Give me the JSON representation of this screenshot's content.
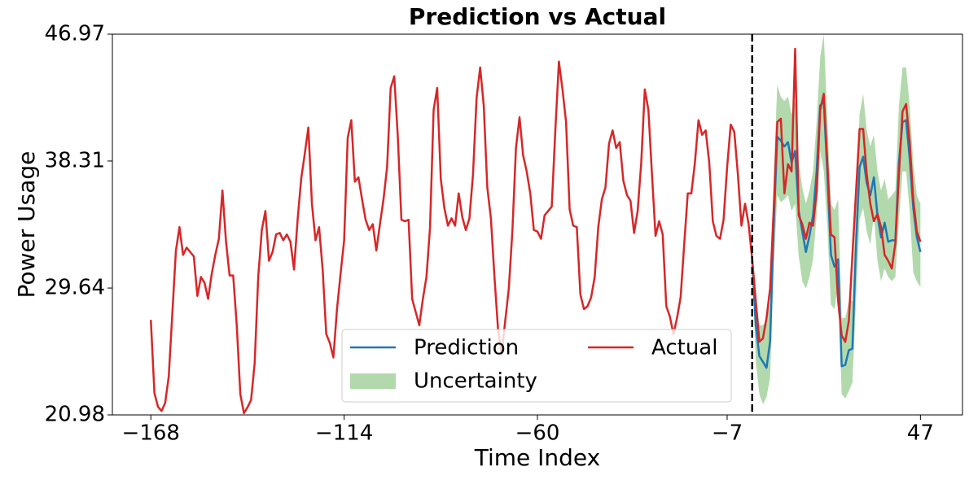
{
  "chart_data": {
    "type": "line",
    "title": "Prediction vs Actual",
    "xlabel": "Time Index",
    "ylabel": "Power Usage",
    "xlim": [
      -178.75,
      58.75
    ],
    "ylim": [
      20.98,
      46.97
    ],
    "xticks": [
      {
        "value": -168,
        "label": "−168"
      },
      {
        "value": -114,
        "label": "−114"
      },
      {
        "value": -60,
        "label": "−60"
      },
      {
        "value": -7,
        "label": "−7"
      },
      47
    ],
    "yticks": [
      20.98,
      29.64,
      38.31,
      46.97
    ],
    "vline": 0,
    "legend": "lower center",
    "series": [
      {
        "name": "Prediction",
        "color": "#1f77b4",
        "x": [
          0,
          1,
          2,
          3,
          4,
          5,
          6,
          7,
          8,
          9,
          10,
          11,
          12,
          13,
          14,
          15,
          16,
          17,
          18,
          19,
          20,
          21,
          22,
          23,
          24,
          25,
          26,
          27,
          28,
          29,
          30,
          31,
          32,
          33,
          34,
          35,
          36,
          37,
          38,
          39,
          40,
          41,
          42,
          43,
          44,
          45,
          46,
          47
        ],
        "values": [
          31.6,
          27.1,
          25.0,
          24.6,
          24.2,
          26.0,
          33.8,
          39.97,
          39.7,
          39.3,
          39.6,
          38.2,
          39.0,
          34.9,
          33.5,
          32.1,
          33.2,
          34.6,
          37.6,
          42.1,
          42.4,
          37.4,
          31.9,
          31.1,
          31.6,
          24.3,
          24.4,
          25.4,
          25.5,
          32.6,
          37.9,
          38.6,
          36.8,
          35.97,
          37.2,
          34.6,
          33.1,
          34.1,
          32.8,
          32.9,
          32.9,
          38.2,
          40.97,
          41.1,
          38.5,
          35.1,
          33.1,
          32.1
        ]
      },
      {
        "name": "Actual",
        "color": "#d62728",
        "x": [
          -168,
          -167,
          -166,
          -165,
          -164,
          -163,
          -162,
          -161,
          -160,
          -159,
          -158,
          -157,
          -156,
          -155,
          -154,
          -153,
          -152,
          -151,
          -150,
          -149,
          -148,
          -147,
          -146,
          -145,
          -144,
          -143,
          -142,
          -141,
          -140,
          -139,
          -138,
          -137,
          -136,
          -135,
          -134,
          -133,
          -132,
          -131,
          -130,
          -129,
          -128,
          -127,
          -126,
          -125,
          -124,
          -123,
          -122,
          -121,
          -120,
          -119,
          -118,
          -117,
          -116,
          -115,
          -114,
          -113,
          -112,
          -111,
          -110,
          -109,
          -108,
          -107,
          -106,
          -105,
          -104,
          -103,
          -102,
          -101,
          -100,
          -99,
          -98,
          -97,
          -96,
          -95,
          -94,
          -93,
          -92,
          -91,
          -90,
          -89,
          -88,
          -87,
          -86,
          -85,
          -84,
          -83,
          -82,
          -81,
          -80,
          -79,
          -78,
          -77,
          -76,
          -75,
          -74,
          -73,
          -72,
          -71,
          -70,
          -69,
          -68,
          -67,
          -66,
          -65,
          -64,
          -63,
          -62,
          -61,
          -60,
          -59,
          -58,
          -57,
          -56,
          -55,
          -54,
          -53,
          -52,
          -51,
          -50,
          -49,
          -48,
          -47,
          -46,
          -45,
          -44,
          -43,
          -42,
          -41,
          -40,
          -39,
          -38,
          -37,
          -36,
          -35,
          -34,
          -33,
          -32,
          -31,
          -30,
          -29,
          -28,
          -27,
          -26,
          -25,
          -24,
          -23,
          -22,
          -21,
          -20,
          -19,
          -18,
          -17,
          -16,
          -15,
          -14,
          -13,
          -12,
          -11,
          -10,
          -9,
          -8,
          -7,
          -6,
          -5,
          -4,
          -3,
          -2,
          -1,
          0,
          1,
          2,
          3,
          4,
          5,
          6,
          7,
          8,
          9,
          10,
          11,
          12,
          13,
          14,
          15,
          16,
          17,
          18,
          19,
          20,
          21,
          22,
          23,
          24,
          25,
          26,
          27,
          28,
          29,
          30,
          31,
          32,
          33,
          34,
          35,
          36,
          37,
          38,
          39,
          40,
          41,
          42,
          43,
          44,
          45,
          46,
          47
        ],
        "values": [
          27.47,
          22.47,
          21.53,
          21.25,
          21.8,
          23.6,
          27.9,
          32.2,
          33.8,
          31.9,
          32.4,
          32.1,
          31.8,
          29.1,
          30.4,
          30.0,
          28.9,
          30.6,
          31.9,
          33.0,
          36.3,
          32.8,
          30.5,
          30.5,
          27.1,
          22.4,
          21.1,
          21.5,
          22.0,
          24.5,
          30.4,
          33.6,
          34.9,
          31.5,
          32.1,
          33.3,
          33.4,
          32.9,
          33.3,
          32.8,
          30.9,
          34.3,
          37.1,
          38.8,
          40.6,
          35.4,
          32.9,
          33.8,
          30.9,
          26.5,
          25.9,
          24.9,
          28.2,
          30.6,
          32.9,
          39.9,
          41.1,
          36.9,
          37.2,
          35.7,
          34.3,
          33.6,
          34.0,
          32.2,
          34.0,
          35.7,
          37.9,
          43.3,
          44.1,
          39.97,
          34.3,
          34.2,
          34.3,
          28.9,
          28.0,
          27.1,
          28.9,
          30.4,
          33.8,
          41.8,
          43.3,
          37.1,
          35.1,
          33.9,
          34.4,
          33.9,
          36.1,
          34.5,
          33.6,
          34.4,
          37.4,
          42.6,
          44.7,
          42.1,
          36.5,
          34.4,
          30.4,
          26.8,
          25.1,
          27.4,
          29.6,
          33.5,
          39.2,
          41.3,
          38.7,
          37.6,
          36.1,
          33.6,
          33.5,
          33.0,
          34.6,
          34.9,
          35.2,
          40.4,
          45.1,
          43.2,
          40.97,
          35.0,
          33.9,
          33.8,
          29.2,
          28.2,
          28.4,
          29.0,
          30.4,
          33.8,
          35.7,
          36.5,
          39.5,
          40.4,
          39.2,
          39.6,
          36.97,
          36.0,
          35.6,
          33.4,
          34.9,
          38.2,
          43.2,
          41.8,
          37.4,
          33.2,
          34.2,
          33.3,
          28.4,
          27.7,
          26.5,
          27.6,
          29.0,
          32.6,
          36.1,
          36.1,
          38.2,
          41.1,
          40.1,
          40.4,
          38.2,
          34.2,
          33.2,
          33.0,
          34.3,
          37.9,
          40.8,
          40.3,
          37.4,
          33.9,
          35.4,
          34.0,
          31.6,
          28.75,
          25.97,
          26.2,
          27.6,
          29.6,
          34.97,
          40.97,
          41.2,
          36.1,
          38.1,
          37.6,
          45.97,
          34.6,
          34.0,
          33.0,
          34.1,
          33.9,
          36.2,
          41.8,
          42.9,
          38.2,
          33.3,
          33.1,
          28.75,
          26.4,
          25.97,
          27.4,
          31.9,
          36.2,
          40.5,
          40.5,
          37.4,
          35.4,
          34.2,
          34.7,
          33.8,
          31.9,
          31.5,
          30.97,
          32.7,
          37.4,
          41.7,
          42.2,
          39.6,
          35.7,
          33.5,
          32.8
        ]
      }
    ],
    "band": {
      "name": "Uncertainty",
      "color": "#b2d9ac",
      "x": [
        0,
        1,
        2,
        3,
        4,
        5,
        6,
        7,
        8,
        9,
        10,
        11,
        12,
        13,
        14,
        15,
        16,
        17,
        18,
        19,
        20,
        21,
        22,
        23,
        24,
        25,
        26,
        27,
        28,
        29,
        30,
        31,
        32,
        33,
        34,
        35,
        36,
        37,
        38,
        39,
        40,
        41,
        42,
        43,
        44,
        45,
        46,
        47
      ],
      "lower": [
        31.2,
        24.6,
        22.4,
        21.7,
        22.2,
        23.5,
        30.97,
        35.97,
        35.5,
        35.7,
        35.97,
        34.9,
        35.4,
        31.8,
        30.1,
        29.6,
        30.4,
        31.6,
        34.6,
        39.0,
        37.6,
        33.8,
        28.5,
        28.2,
        29.9,
        22.4,
        22.1,
        22.6,
        23.2,
        28.75,
        34.3,
        35.1,
        33.5,
        32.6,
        34.6,
        31.5,
        30.1,
        30.97,
        30.4,
        30.1,
        30.4,
        34.3,
        37.6,
        37.6,
        34.9,
        30.7,
        30.1,
        29.7
      ],
      "upper": [
        31.9,
        29.3,
        27.1,
        27.1,
        27.4,
        28.75,
        37.1,
        43.5,
        42.7,
        42.4,
        42.7,
        41.5,
        42.4,
        38.2,
        36.5,
        35.4,
        36.3,
        37.6,
        40.97,
        45.4,
        46.97,
        41.2,
        35.4,
        34.97,
        35.7,
        27.6,
        27.6,
        28.75,
        28.75,
        35.97,
        41.5,
        42.9,
        40.4,
        39.3,
        40.1,
        37.6,
        36.3,
        37.1,
        35.7,
        35.97,
        36.3,
        42.1,
        44.7,
        44.7,
        42.1,
        38.2,
        35.97,
        35.4
      ]
    }
  }
}
